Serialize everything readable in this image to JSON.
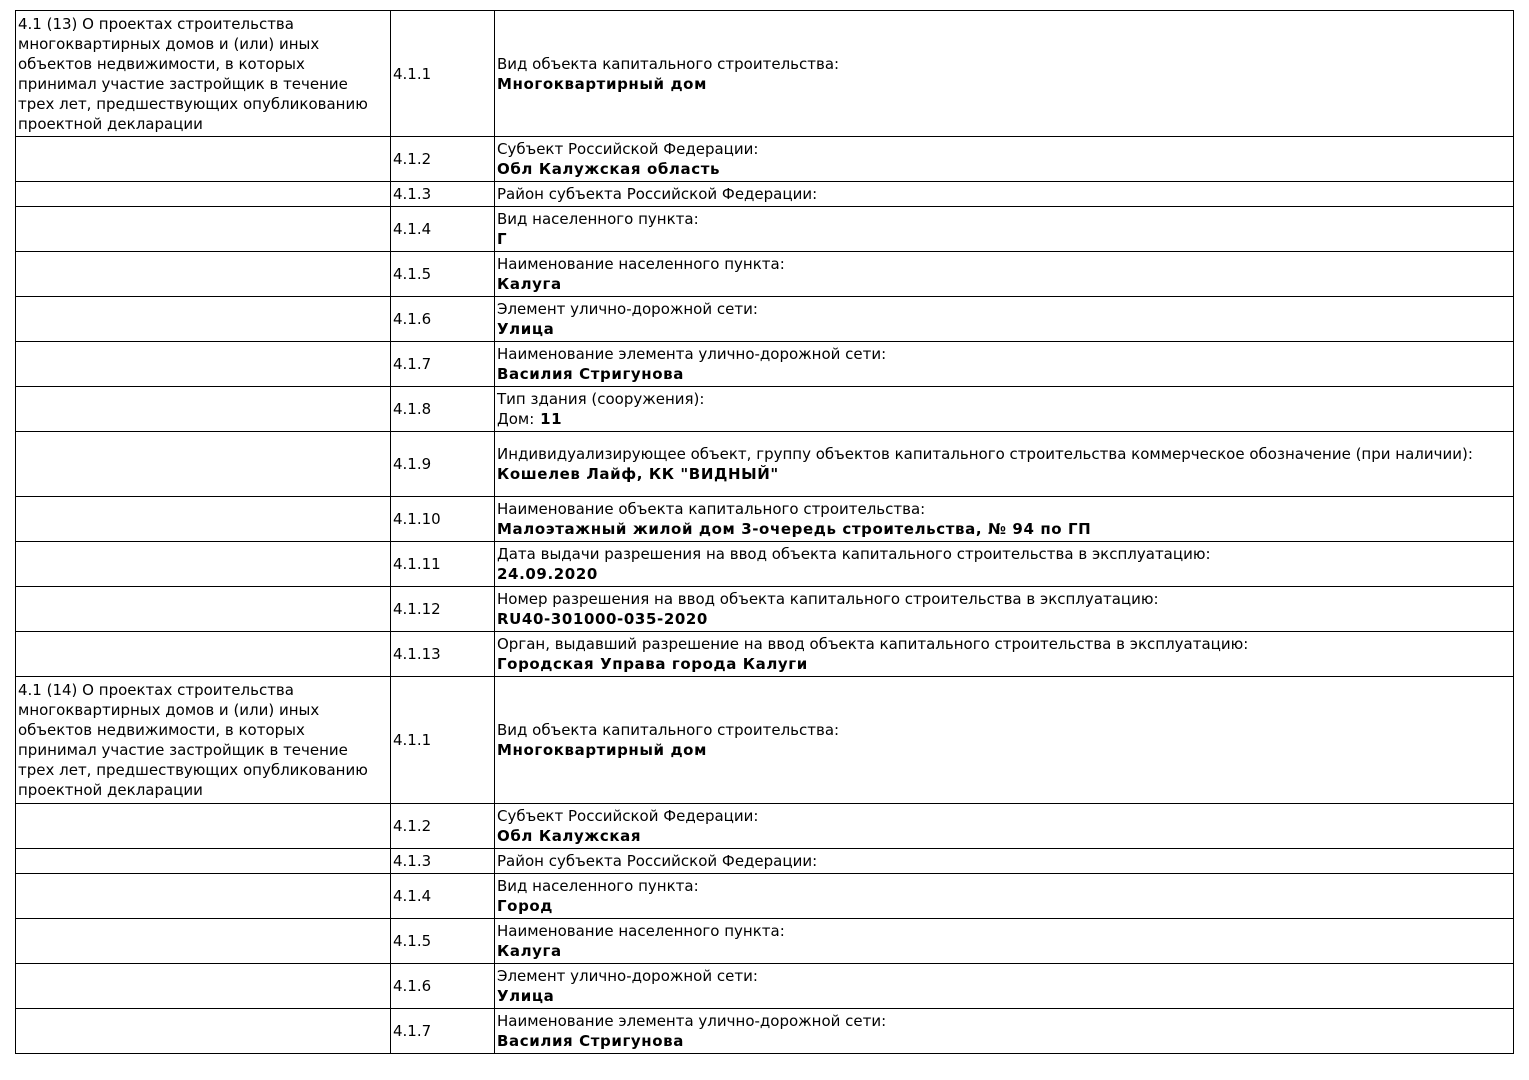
{
  "sections": [
    {
      "title": "4.1 (13) О проектах строительства многоквартирных домов и (или) иных объектов недвижимости, в которых принимал участие застройщик в течение трех лет, предшествующих опубликованию проектной декларации",
      "rows": [
        {
          "num": "4.1.1",
          "label": "Вид объекта капитального строительства:",
          "value": "Многоквартирный дом"
        },
        {
          "num": "4.1.2",
          "label": "Субъект Российской Федерации:",
          "value": "Обл Калужская область"
        },
        {
          "num": "4.1.3",
          "label": "Район субъекта Российской Федерации:",
          "value": ""
        },
        {
          "num": "4.1.4",
          "label": "Вид населенного пункта:",
          "value": "Г"
        },
        {
          "num": "4.1.5",
          "label": "Наименование населенного пункта:",
          "value": "Калуга"
        },
        {
          "num": "4.1.6",
          "label": "Элемент улично-дорожной сети:",
          "value": "Улица"
        },
        {
          "num": "4.1.7",
          "label": "Наименование элемента улично-дорожной сети:",
          "value": "Василия Стригунова"
        },
        {
          "num": "4.1.8",
          "label": "Тип здания (сооружения):",
          "prefix": "Дом:",
          "value": "11"
        },
        {
          "num": "4.1.9",
          "label": "Индивидуализирующее объект, группу объектов капитального строительства коммерческое обозначение (при наличии):",
          "value": "Кошелев Лайф, КК \"ВИДНЫЙ\""
        },
        {
          "num": "4.1.10",
          "label": "Наименование объекта капитального строительства:",
          "value": "Малоэтажный жилой дом 3-очередь строительства, № 94 по ГП"
        },
        {
          "num": "4.1.11",
          "label": "Дата выдачи разрешения на ввод объекта капитального строительства в эксплуатацию:",
          "value": "24.09.2020"
        },
        {
          "num": "4.1.12",
          "label": "Номер разрешения на ввод объекта капитального строительства в эксплуатацию:",
          "value": "RU40-301000-035-2020"
        },
        {
          "num": "4.1.13",
          "label": "Орган, выдавший разрешение на ввод объекта капитального строительства в эксплуатацию:",
          "value": "Городская Управа города Калуги"
        }
      ]
    },
    {
      "title": "4.1 (14) О проектах строительства многоквартирных домов и (или) иных объектов недвижимости, в которых принимал участие застройщик в течение трех лет, предшествующих опубликованию проектной декларации",
      "rows": [
        {
          "num": "4.1.1",
          "label": "Вид объекта капитального строительства:",
          "value": "Многоквартирный дом"
        },
        {
          "num": "4.1.2",
          "label": "Субъект Российской Федерации:",
          "value": "Обл Калужская"
        },
        {
          "num": "4.1.3",
          "label": "Район субъекта Российской Федерации:",
          "value": ""
        },
        {
          "num": "4.1.4",
          "label": "Вид населенного пункта:",
          "value": "Город"
        },
        {
          "num": "4.1.5",
          "label": "Наименование населенного пункта:",
          "value": "Калуга"
        },
        {
          "num": "4.1.6",
          "label": "Элемент улично-дорожной сети:",
          "value": "Улица"
        },
        {
          "num": "4.1.7",
          "label": "Наименование элемента улично-дорожной сети:",
          "value": "Василия Стригунова"
        }
      ]
    }
  ]
}
